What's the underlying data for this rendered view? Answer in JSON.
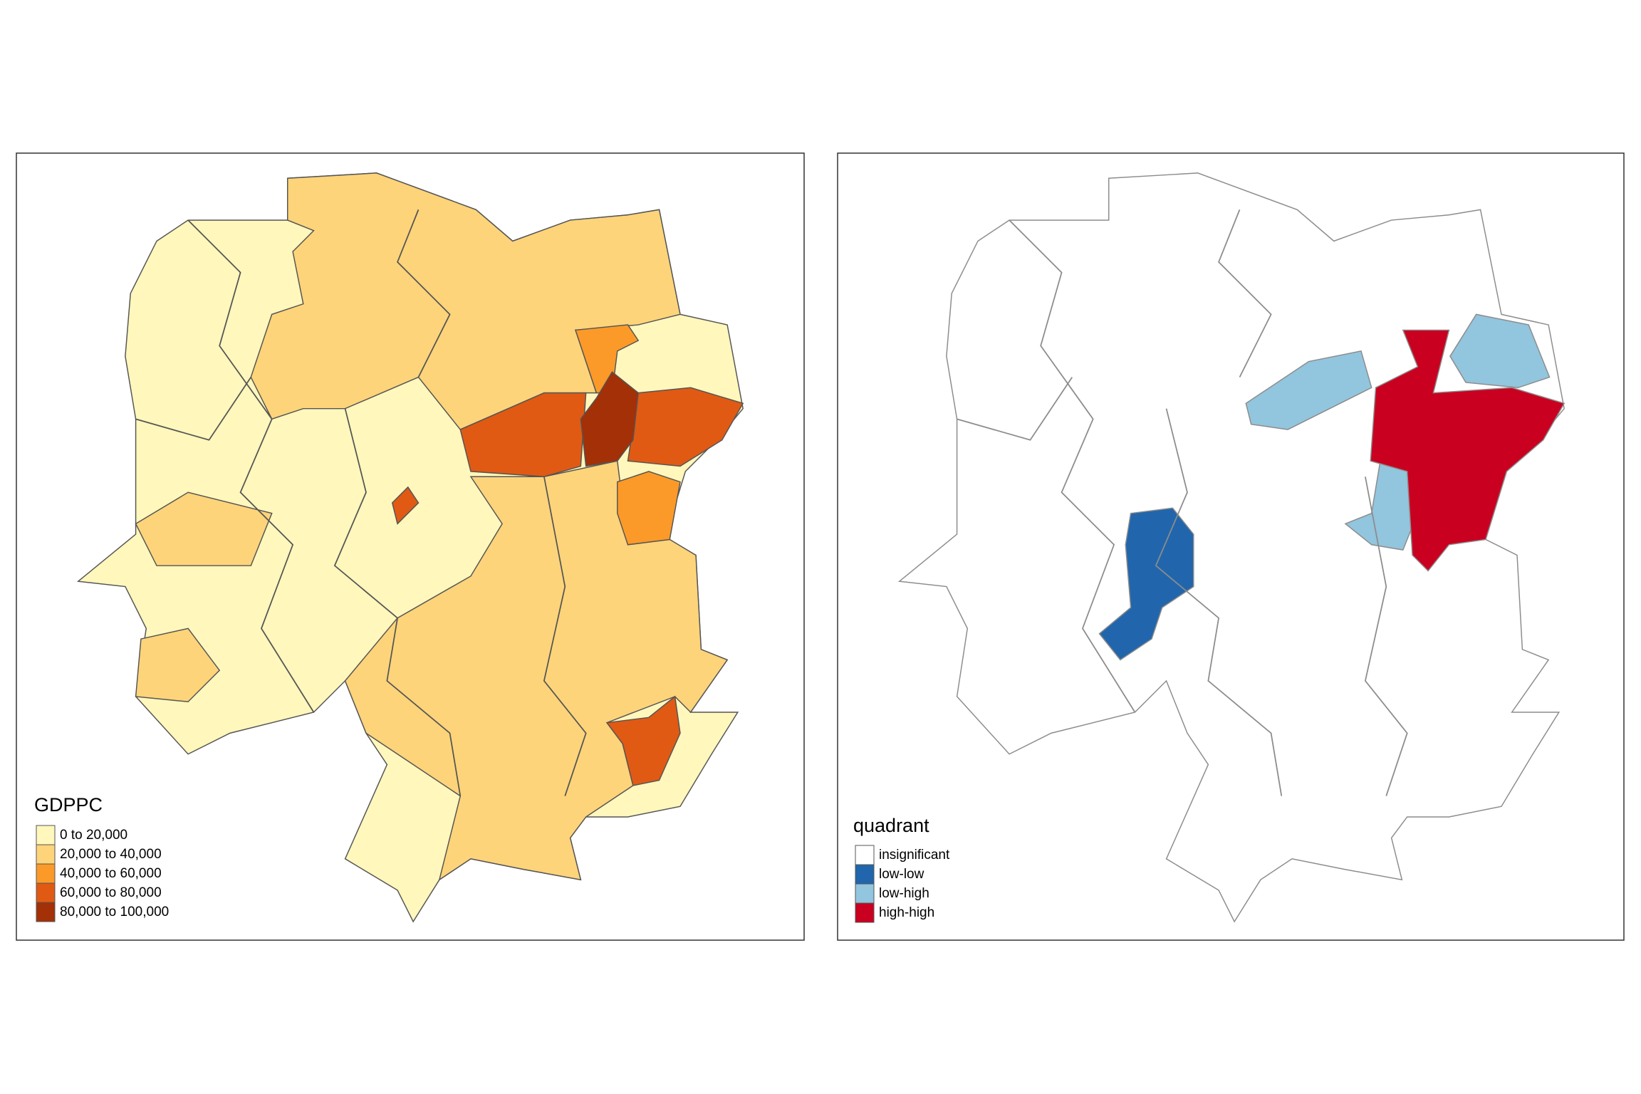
{
  "maps": [
    {
      "legend_title": "GDPPC",
      "stroke": "#555555",
      "classes": [
        {
          "label": "0 to 20,000",
          "color": "#fff7bc"
        },
        {
          "label": "20,000 to 40,000",
          "color": "#fed47a"
        },
        {
          "label": "40,000 to 60,000",
          "color": "#fb9a29"
        },
        {
          "label": "60,000 to 80,000",
          "color": "#e05a14"
        },
        {
          "label": "80,000 to 100,000",
          "color": "#a33007"
        }
      ]
    },
    {
      "legend_title": "quadrant",
      "stroke": "#8c8c8c",
      "classes": [
        {
          "label": "insignificant",
          "color": "#ffffff"
        },
        {
          "label": "low-low",
          "color": "#2166ac"
        },
        {
          "label": "low-high",
          "color": "#92c5de"
        },
        {
          "label": "high-high",
          "color": "#ca0020"
        }
      ]
    }
  ]
}
